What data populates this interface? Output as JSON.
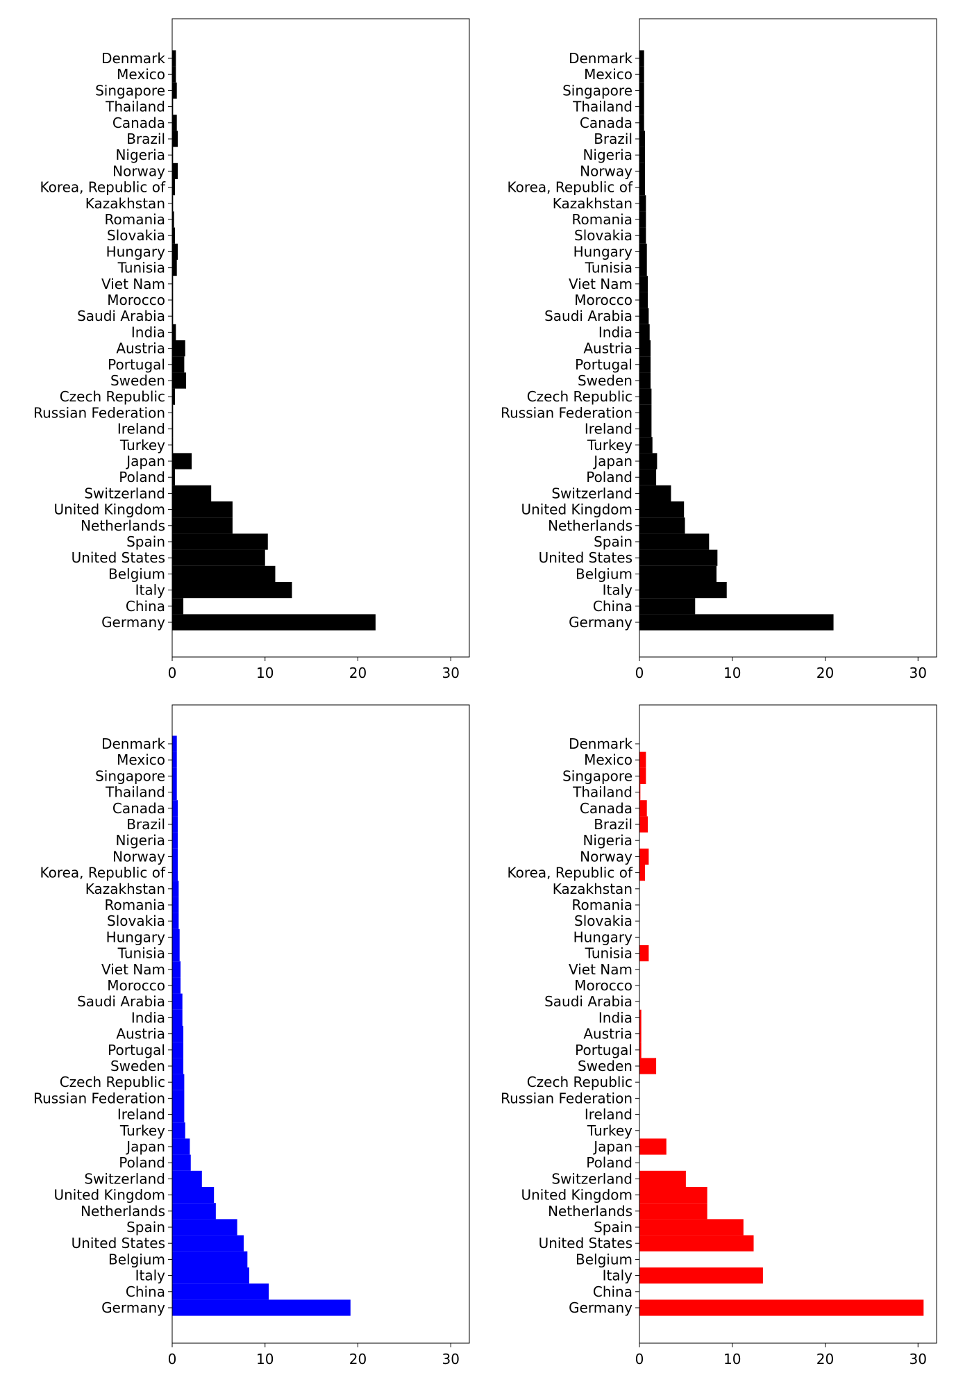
{
  "chart_data": [
    {
      "type": "bar",
      "orientation": "horizontal",
      "color": "#000000",
      "xlim": [
        0,
        32
      ],
      "xticks": [
        0,
        10,
        20,
        30
      ],
      "categories": [
        "Germany",
        "China",
        "Italy",
        "Belgium",
        "United States",
        "Spain",
        "Netherlands",
        "United Kingdom",
        "Switzerland",
        "Poland",
        "Japan",
        "Turkey",
        "Ireland",
        "Russian Federation",
        "Czech Republic",
        "Sweden",
        "Portugal",
        "Austria",
        "India",
        "Saudi Arabia",
        "Morocco",
        "Viet Nam",
        "Tunisia",
        "Hungary",
        "Slovakia",
        "Romania",
        "Kazakhstan",
        "Korea, Republic of",
        "Norway",
        "Nigeria",
        "Brazil",
        "Canada",
        "Thailand",
        "Singapore",
        "Mexico",
        "Denmark"
      ],
      "values": [
        21.9,
        1.2,
        12.9,
        11.1,
        10.0,
        10.3,
        6.5,
        6.5,
        4.2,
        0.3,
        2.1,
        0.1,
        0.1,
        0.1,
        0.3,
        1.5,
        1.3,
        1.4,
        0.4,
        0.1,
        0.1,
        0.1,
        0.5,
        0.6,
        0.3,
        0.2,
        0.1,
        0.3,
        0.6,
        0.1,
        0.6,
        0.5,
        0.1,
        0.5,
        0.4,
        0.4
      ]
    },
    {
      "type": "bar",
      "orientation": "horizontal",
      "color": "#000000",
      "xlim": [
        0,
        32
      ],
      "xticks": [
        0,
        10,
        20,
        30
      ],
      "categories": [
        "Germany",
        "China",
        "Italy",
        "Belgium",
        "United States",
        "Spain",
        "Netherlands",
        "United Kingdom",
        "Switzerland",
        "Poland",
        "Japan",
        "Turkey",
        "Ireland",
        "Russian Federation",
        "Czech Republic",
        "Sweden",
        "Portugal",
        "Austria",
        "India",
        "Saudi Arabia",
        "Morocco",
        "Viet Nam",
        "Tunisia",
        "Hungary",
        "Slovakia",
        "Romania",
        "Kazakhstan",
        "Korea, Republic of",
        "Norway",
        "Nigeria",
        "Brazil",
        "Canada",
        "Thailand",
        "Singapore",
        "Mexico",
        "Denmark"
      ],
      "values": [
        20.9,
        6.0,
        9.4,
        8.3,
        8.4,
        7.5,
        4.9,
        4.8,
        3.4,
        1.8,
        1.9,
        1.4,
        1.3,
        1.3,
        1.3,
        1.2,
        1.2,
        1.2,
        1.1,
        1.0,
        0.9,
        0.9,
        0.8,
        0.8,
        0.7,
        0.7,
        0.7,
        0.6,
        0.6,
        0.6,
        0.6,
        0.5,
        0.5,
        0.5,
        0.5,
        0.5
      ]
    },
    {
      "type": "bar",
      "orientation": "horizontal",
      "color": "#0000ff",
      "xlim": [
        0,
        32
      ],
      "xticks": [
        0,
        10,
        20,
        30
      ],
      "categories": [
        "Germany",
        "China",
        "Italy",
        "Belgium",
        "United States",
        "Spain",
        "Netherlands",
        "United Kingdom",
        "Switzerland",
        "Poland",
        "Japan",
        "Turkey",
        "Ireland",
        "Russian Federation",
        "Czech Republic",
        "Sweden",
        "Portugal",
        "Austria",
        "India",
        "Saudi Arabia",
        "Morocco",
        "Viet Nam",
        "Tunisia",
        "Hungary",
        "Slovakia",
        "Romania",
        "Kazakhstan",
        "Korea, Republic of",
        "Norway",
        "Nigeria",
        "Brazil",
        "Canada",
        "Thailand",
        "Singapore",
        "Mexico",
        "Denmark"
      ],
      "values": [
        19.2,
        10.4,
        8.3,
        8.1,
        7.7,
        7.0,
        4.7,
        4.5,
        3.2,
        2.0,
        1.9,
        1.4,
        1.3,
        1.3,
        1.3,
        1.2,
        1.2,
        1.2,
        1.1,
        1.1,
        0.9,
        0.9,
        0.8,
        0.8,
        0.7,
        0.7,
        0.7,
        0.6,
        0.6,
        0.6,
        0.6,
        0.6,
        0.5,
        0.5,
        0.5,
        0.5
      ]
    },
    {
      "type": "bar",
      "orientation": "horizontal",
      "color": "#ff0000",
      "xlim": [
        0,
        32
      ],
      "xticks": [
        0,
        10,
        20,
        30
      ],
      "categories": [
        "Germany",
        "China",
        "Italy",
        "Belgium",
        "United States",
        "Spain",
        "Netherlands",
        "United Kingdom",
        "Switzerland",
        "Poland",
        "Japan",
        "Turkey",
        "Ireland",
        "Russian Federation",
        "Czech Republic",
        "Sweden",
        "Portugal",
        "Austria",
        "India",
        "Saudi Arabia",
        "Morocco",
        "Viet Nam",
        "Tunisia",
        "Hungary",
        "Slovakia",
        "Romania",
        "Kazakhstan",
        "Korea, Republic of",
        "Norway",
        "Nigeria",
        "Brazil",
        "Canada",
        "Thailand",
        "Singapore",
        "Mexico",
        "Denmark"
      ],
      "values": [
        30.6,
        0.0,
        13.3,
        0.0,
        12.3,
        11.2,
        7.3,
        7.3,
        5.0,
        0.0,
        2.9,
        0.0,
        0.0,
        0.0,
        0.0,
        1.8,
        0.2,
        0.2,
        0.2,
        0.0,
        0.0,
        0.0,
        1.0,
        0.0,
        0.0,
        0.0,
        0.0,
        0.6,
        1.0,
        0.0,
        0.9,
        0.8,
        0.1,
        0.7,
        0.7,
        0.0
      ]
    }
  ]
}
